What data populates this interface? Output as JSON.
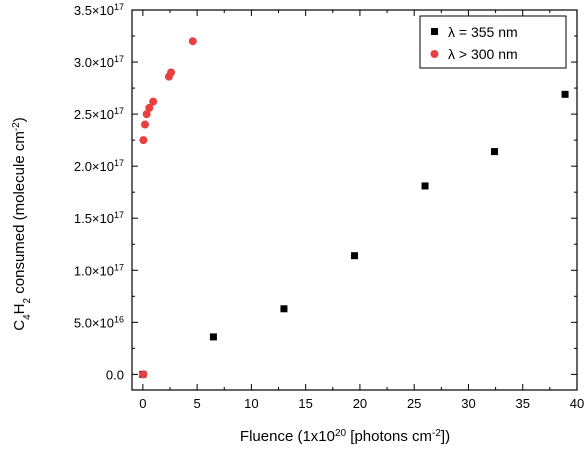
{
  "chart_data": {
    "type": "scatter",
    "xlabel": "Fluence (1x10^20 [photons cm^-2])",
    "ylabel": "C4H2 consumed (molecule cm^-2)",
    "xlim": [
      -1,
      40
    ],
    "ylim": [
      -1.5e+16,
      3.5e+17
    ],
    "x_ticks": [
      0,
      5,
      10,
      15,
      20,
      25,
      30,
      35,
      40
    ],
    "y_ticks": [
      0,
      5e+16,
      1e+17,
      1.5e+17,
      2e+17,
      2.5e+17,
      3e+17,
      3.5e+17
    ],
    "y_tick_labels": [
      "0.0",
      "5.0×10^16",
      "1.0×10^17",
      "1.5×10^17",
      "2.0×10^17",
      "2.5×10^17",
      "3.0×10^17",
      "3.5×10^17"
    ],
    "grid": false,
    "legend_position": "top-right",
    "series": [
      {
        "name": "λ = 355 nm",
        "marker": "square",
        "color": "#000000",
        "points": [
          [
            0,
            0
          ],
          [
            6.5,
            3.6e+16
          ],
          [
            13.0,
            6.3e+16
          ],
          [
            19.5,
            1.14e+17
          ],
          [
            26.0,
            1.81e+17
          ],
          [
            32.4,
            2.14e+17
          ],
          [
            38.9,
            2.69e+17
          ]
        ]
      },
      {
        "name": "λ > 300 nm",
        "marker": "circle",
        "color": "#e84040",
        "points": [
          [
            0.05,
            2.25e+17
          ],
          [
            0.2,
            2.4e+17
          ],
          [
            0.35,
            2.5e+17
          ],
          [
            0.6,
            2.56e+17
          ],
          [
            0.95,
            2.62e+17
          ],
          [
            2.4,
            2.86e+17
          ],
          [
            2.6,
            2.9e+17
          ],
          [
            4.6,
            3.2e+17
          ],
          [
            0.05,
            0
          ]
        ]
      }
    ]
  }
}
